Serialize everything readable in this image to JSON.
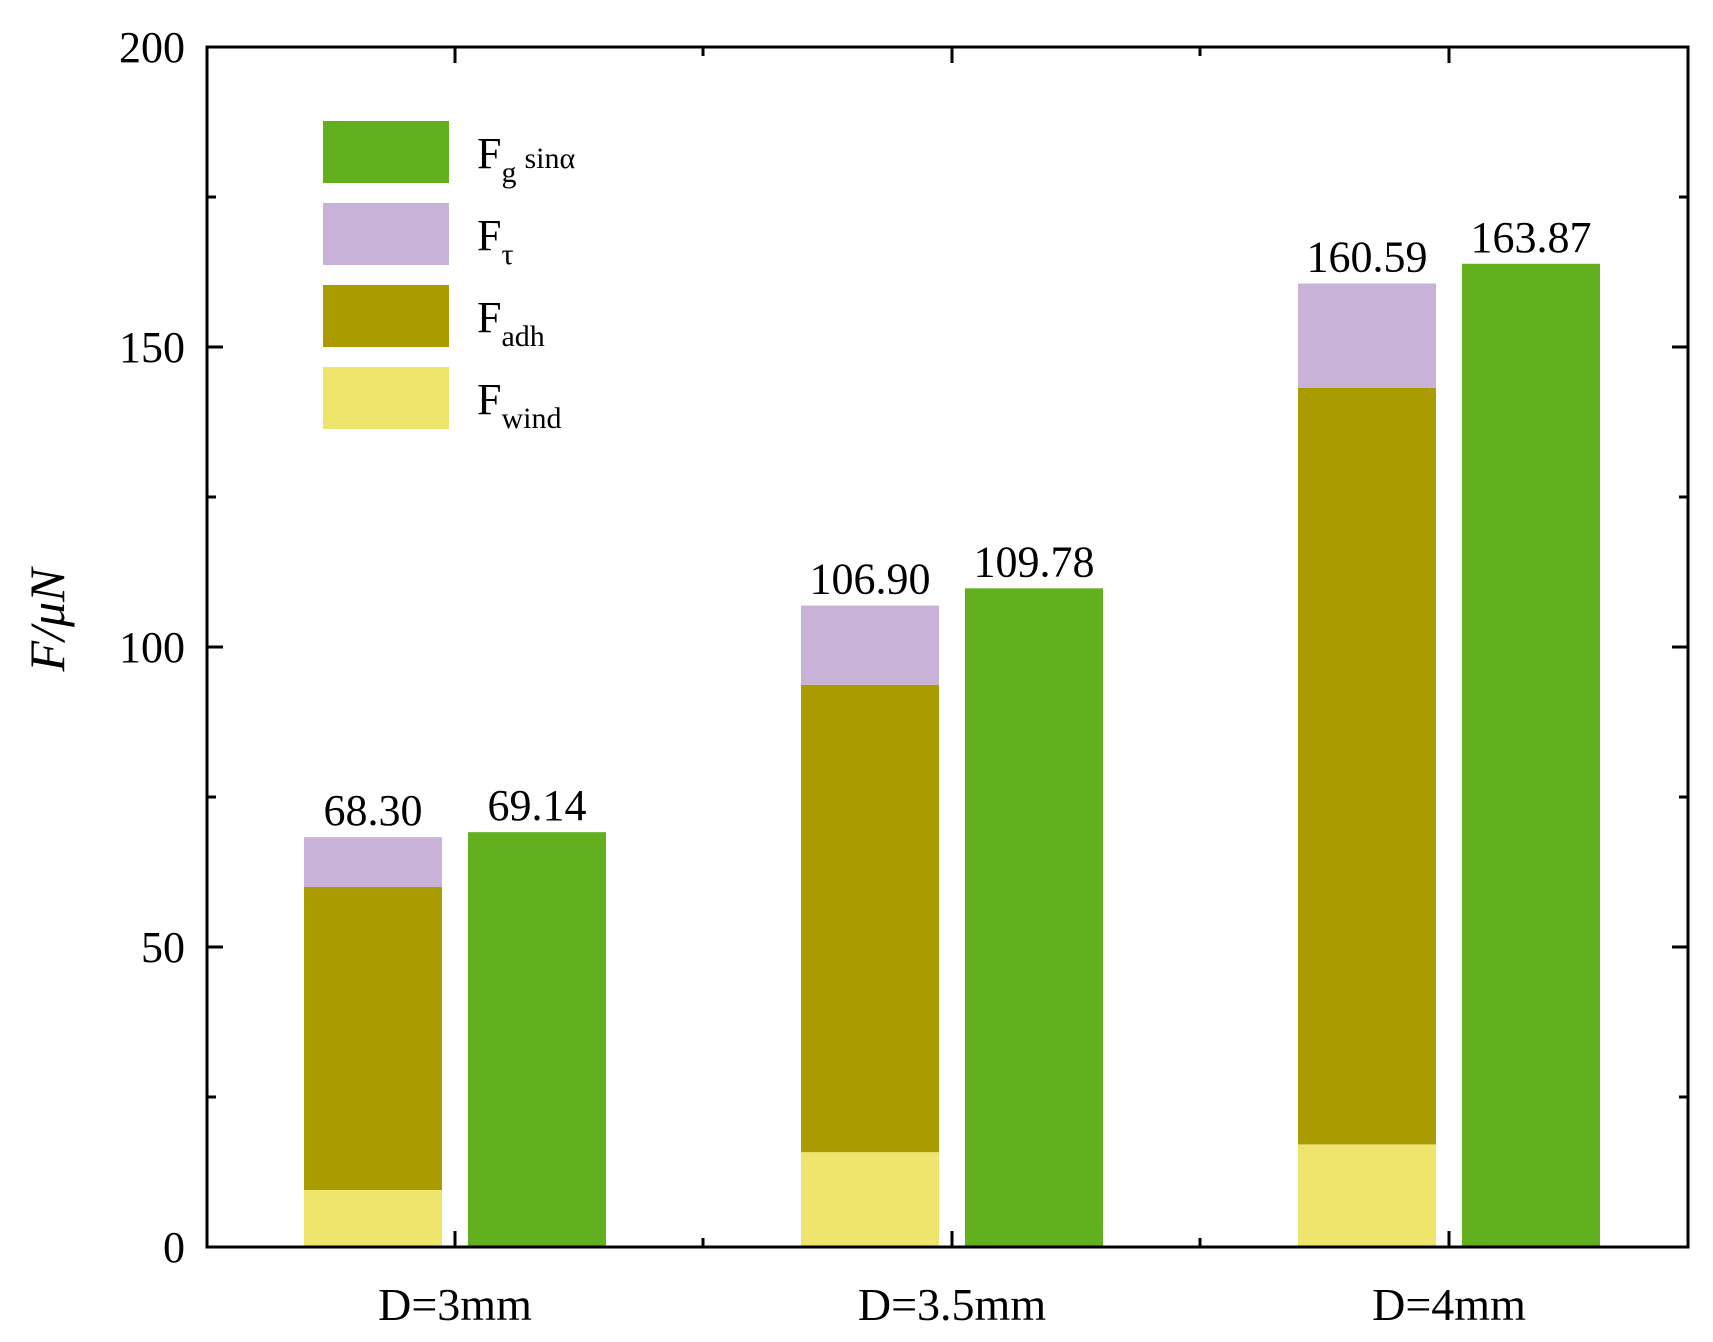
{
  "chart_data": {
    "type": "bar",
    "title": "",
    "xlabel": "",
    "ylabel": "F/μN",
    "ylim": [
      0,
      200
    ],
    "yticks": [
      "0",
      "50",
      "100",
      "150",
      "200"
    ],
    "grid": false,
    "legend_position": "top-left",
    "categories": [
      "D=3mm",
      "D=3.5mm",
      "D=4mm"
    ],
    "stacked_series": [
      {
        "name": "F_wind",
        "label_main": "F",
        "label_sub": "wind",
        "color": "#efe46c",
        "values": [
          9.5,
          15.8,
          17.1
        ]
      },
      {
        "name": "F_adh",
        "label_main": "F",
        "label_sub": "adh",
        "color": "#aa9c00",
        "values": [
          50.5,
          77.9,
          126.1
        ]
      },
      {
        "name": "F_τ",
        "label_main": "F",
        "label_sub": "τ",
        "color": "#c8b2d8",
        "values": [
          8.3,
          13.2,
          17.39
        ]
      }
    ],
    "single_series": [
      {
        "name": "F_g sinα",
        "label_main": "F",
        "label_sub": "g",
        "label_suffix": "sinα",
        "color": "#62b01e",
        "values": [
          69.14,
          109.78,
          163.87
        ]
      }
    ],
    "stack_totals": [
      "68.30",
      "106.90",
      "160.59"
    ],
    "single_labels": [
      "69.14",
      "109.78",
      "163.87"
    ],
    "legend_order": [
      "F_g sinα",
      "F_τ",
      "F_adh",
      "F_wind"
    ]
  }
}
